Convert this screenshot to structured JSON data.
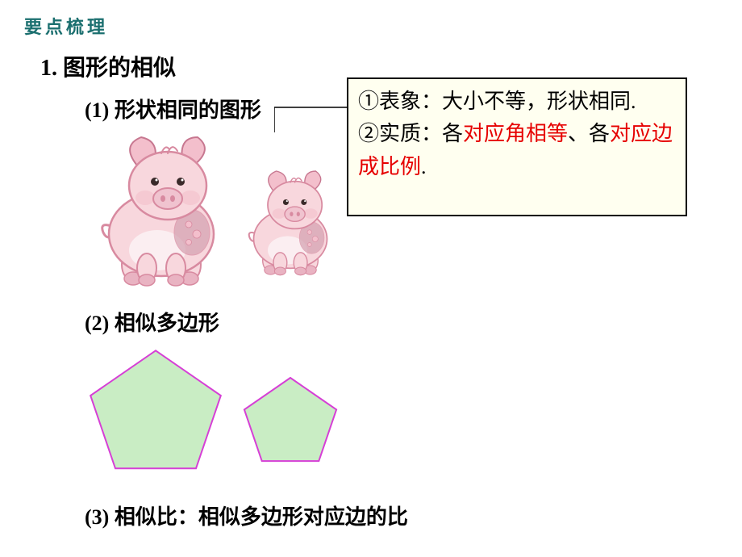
{
  "header": "要点梳理",
  "section": {
    "title": "1. 图形的相似",
    "item1": "(1) 形状相同的图形",
    "item2": "(2) 相似多边形",
    "item3": "(3) 相似比：相似多边形对应边的比"
  },
  "callout": {
    "line1_plain": "①表象：大小不等，形状相同.",
    "line2_prefix": "②实质：各",
    "line2_red1": "对应角相等",
    "line2_mid": "、各",
    "line2_red2": "对应边成比例",
    "line2_suffix": "."
  },
  "callout_style": {
    "bg": "#fffff0",
    "border": "#000000",
    "red": "#e60000",
    "fontsize": 26
  },
  "pig_illustration": {
    "large_scale": 1.0,
    "small_scale": 0.7,
    "body_fill": "#f8d7dd",
    "body_stroke": "#d88aa0",
    "ear_fill": "#f3bfcc",
    "ear_stroke": "#c77790",
    "snout_fill": "#f0c3cf",
    "belly_fill": "#fbeef1",
    "hoof_fill": "#e9b3c2",
    "pattern_fill": "#d4a0b0"
  },
  "pentagon": {
    "fill": "#c9edc4",
    "stroke": "#d63fd6",
    "stroke_width": 2,
    "large_size": 170,
    "small_size": 120
  }
}
